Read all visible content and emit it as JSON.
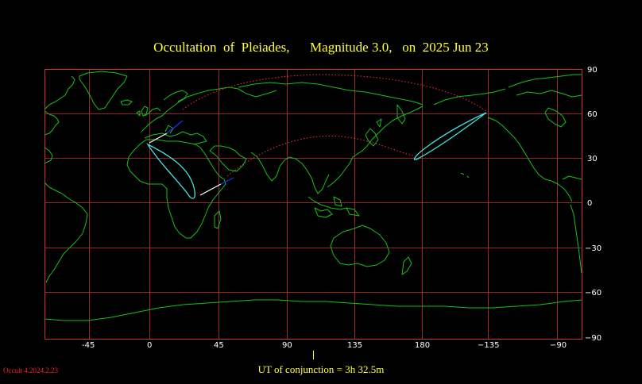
{
  "title": "Occultation  of  Pleiades,      Magnitude 3.0,   on  2025 Jun 23",
  "footer": {
    "ut_text": "UT of conjunction =  3h 32.5m",
    "version": "Occult 4.2024.2.23"
  },
  "axes": {
    "lon_labels": [
      "-45",
      "0",
      "45",
      "90",
      "135",
      "180",
      "−135",
      "−90"
    ],
    "lat_labels": [
      "90",
      "60",
      "30",
      "0",
      "−30",
      "−60",
      "−90"
    ]
  },
  "colors": {
    "background": "#000000",
    "title": "#ffff33",
    "grid": "#c83232",
    "coast": "#18c018",
    "track": "#40e0e0",
    "twilight": "#ff3030",
    "daylight": "#ffffff",
    "night": "#2030ff"
  }
}
